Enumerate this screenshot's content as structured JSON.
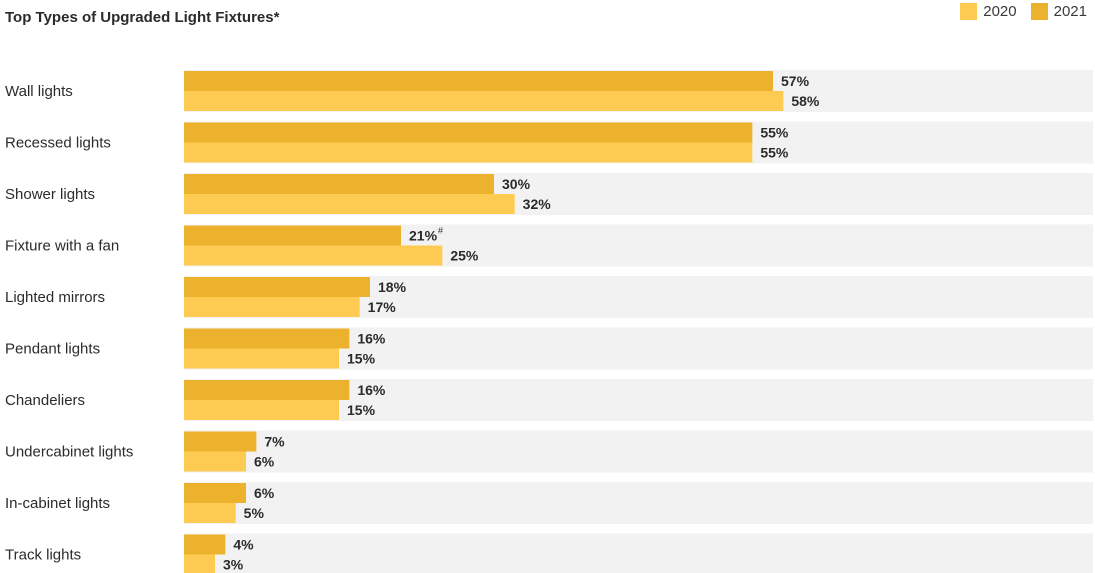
{
  "chart_data": {
    "type": "bar",
    "orientation": "horizontal",
    "title": "Top Types of Upgraded Light Fixtures*",
    "xlim": [
      0,
      100
    ],
    "grid": false,
    "legend_position": "top-right",
    "categories": [
      "Wall lights",
      "Recessed lights",
      "Shower lights",
      "Fixture with a fan",
      "Lighted mirrors",
      "Pendant lights",
      "Chandeliers",
      "Undercabinet lights",
      "In-cabinet lights",
      "Track lights"
    ],
    "series": [
      {
        "name": "2021",
        "color": "#ecb22e",
        "values": [
          57,
          55,
          30,
          21,
          18,
          16,
          16,
          7,
          6,
          4
        ],
        "notes": [
          "",
          "",
          "",
          "#",
          "",
          "",
          "",
          "",
          "",
          ""
        ]
      },
      {
        "name": "2020",
        "color": "#fecb52",
        "values": [
          58,
          55,
          32,
          25,
          17,
          15,
          15,
          6,
          5,
          3
        ],
        "notes": [
          "",
          "",
          "",
          "",
          "",
          "",
          "",
          "",
          "",
          ""
        ]
      }
    ],
    "value_suffix": "%"
  },
  "legend": [
    {
      "label": "2020",
      "color": "#fecb52"
    },
    {
      "label": "2021",
      "color": "#ecb22e"
    }
  ],
  "colors": {
    "row_background": "#f2f2f2"
  }
}
